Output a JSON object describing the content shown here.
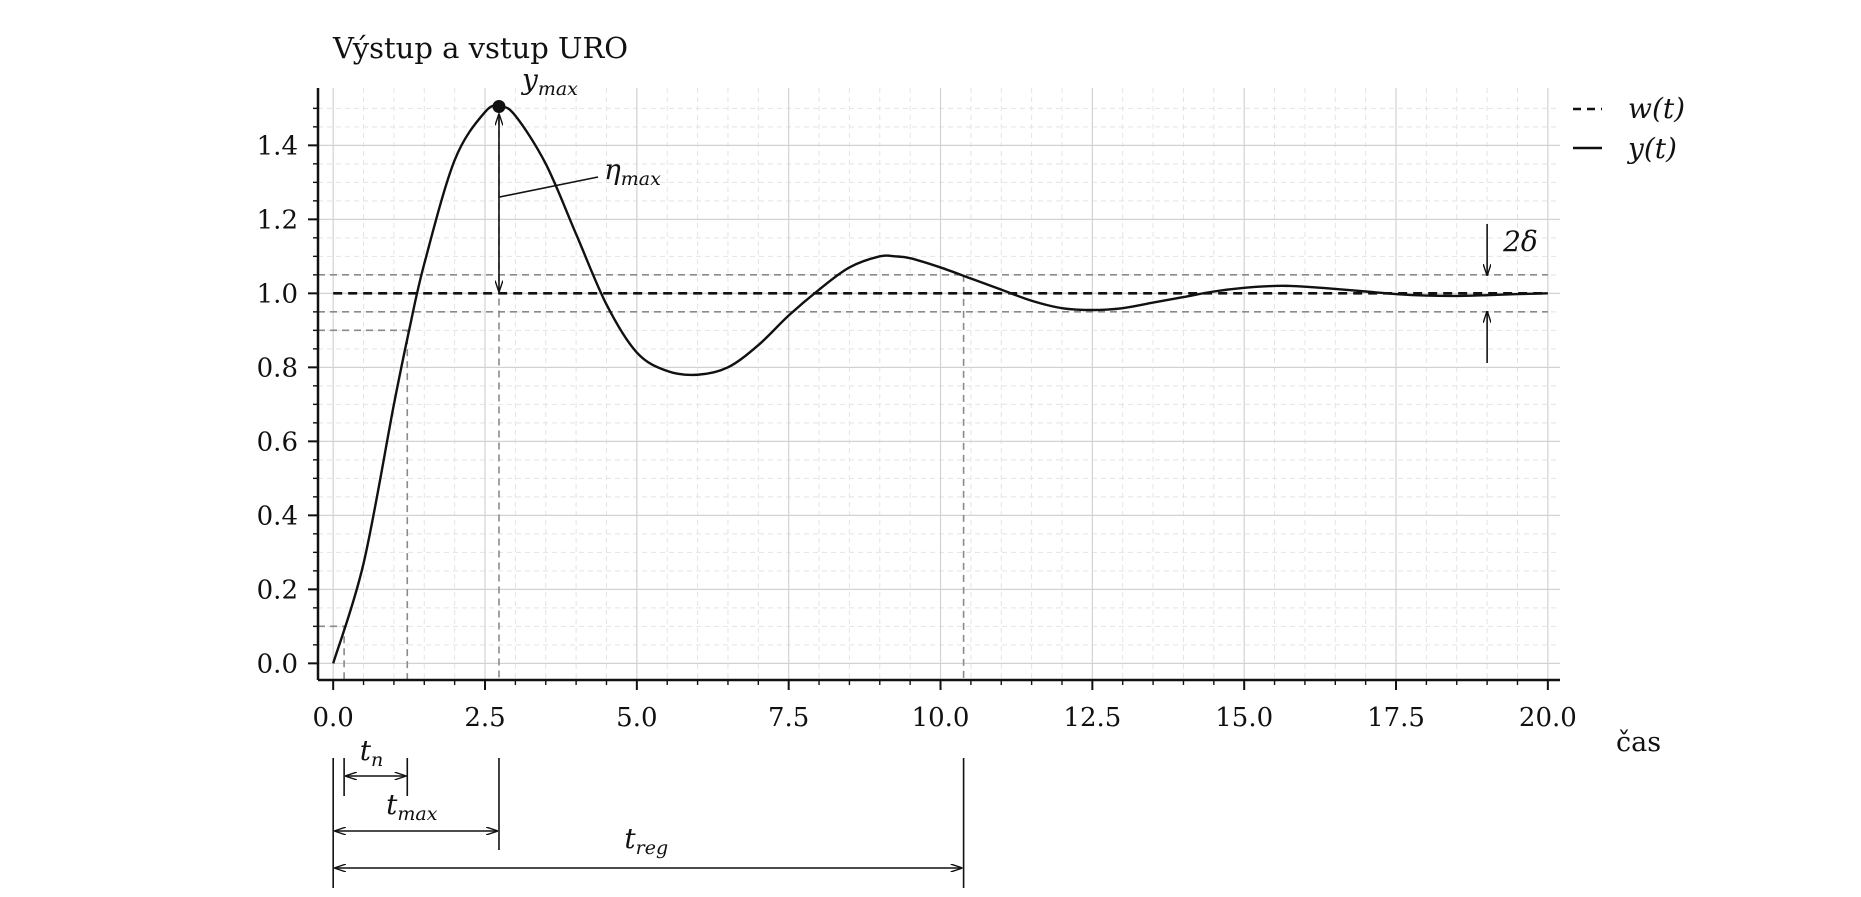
{
  "chart_data": {
    "type": "line",
    "title": "Výstup a vstup URO",
    "xlabel": "čas",
    "ylabel": "",
    "xlim": [
      -0.25,
      20.2
    ],
    "ylim": [
      -0.045,
      1.555
    ],
    "x_ticks": [
      "0.0",
      "2.5",
      "5.0",
      "7.5",
      "10.0",
      "12.5",
      "15.0",
      "17.5",
      "20.0"
    ],
    "y_ticks": [
      "0.0",
      "0.2",
      "0.4",
      "0.6",
      "0.8",
      "1.0",
      "1.2",
      "1.4"
    ],
    "grid": true,
    "legend_position": "outside-top-right",
    "series": [
      {
        "name": "w(t)",
        "style": "dashed",
        "x": [
          0,
          20
        ],
        "values": [
          1.0,
          1.0
        ]
      },
      {
        "name": "y(t)",
        "style": "solid",
        "x": [
          0,
          0.5,
          1.0,
          1.25,
          1.5,
          2.0,
          2.5,
          2.75,
          3.0,
          3.5,
          4.0,
          4.5,
          5.0,
          5.5,
          6.0,
          6.5,
          7.0,
          7.5,
          8.0,
          8.5,
          9.0,
          9.25,
          9.5,
          10.0,
          10.5,
          11.0,
          11.5,
          12.0,
          12.5,
          13.0,
          13.5,
          14.0,
          14.5,
          15.0,
          15.5,
          15.75,
          16.0,
          16.5,
          17.0,
          17.5,
          18.0,
          18.5,
          19.0,
          19.5,
          20.0
        ],
        "values": [
          0.0,
          0.27,
          0.7,
          0.9,
          1.08,
          1.36,
          1.49,
          1.505,
          1.48,
          1.35,
          1.16,
          0.97,
          0.84,
          0.79,
          0.78,
          0.8,
          0.86,
          0.94,
          1.01,
          1.07,
          1.1,
          1.1,
          1.095,
          1.07,
          1.04,
          1.01,
          0.98,
          0.96,
          0.955,
          0.96,
          0.975,
          0.99,
          1.005,
          1.015,
          1.02,
          1.02,
          1.018,
          1.012,
          1.005,
          0.998,
          0.994,
          0.993,
          0.995,
          0.998,
          1.0
        ]
      }
    ],
    "tolerance_band": [
      0.95,
      1.05
    ],
    "markers": {
      "t_start": 0.18,
      "t_n": 1.22,
      "t_max": 2.73,
      "t_reg": 10.38,
      "y_max": 1.505,
      "y_start_level": 0.1,
      "y_rise_level": 0.9,
      "delta_x": 19.0
    },
    "annotations": {
      "y_max": {
        "base": "y",
        "sub": "max"
      },
      "eta_max": {
        "base": "η",
        "sub": "max"
      },
      "two_delta": "2δ",
      "t_n": {
        "base": "t",
        "sub": "n"
      },
      "t_max": {
        "base": "t",
        "sub": "max"
      },
      "t_reg": {
        "base": "t",
        "sub": "reg"
      }
    }
  }
}
